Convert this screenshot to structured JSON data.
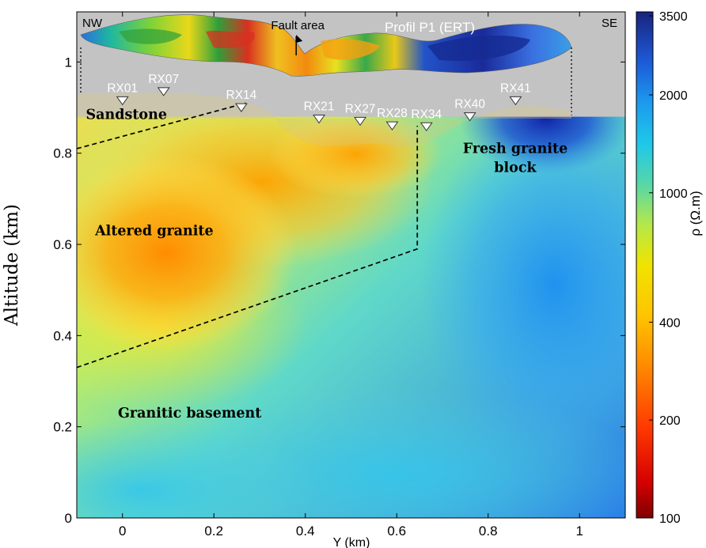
{
  "chart_data": {
    "type": "heatmap",
    "xlabel": "Y (km)",
    "ylabel": "Altitude (km)",
    "xlim": [
      -0.1,
      1.1
    ],
    "ylim": [
      0,
      1.11
    ],
    "x_ticks": [
      "0",
      "0.2",
      "0.4",
      "0.6",
      "0.8",
      "1"
    ],
    "x_tick_values": [
      0,
      0.2,
      0.4,
      0.6,
      0.8,
      1.0
    ],
    "y_ticks": [
      "0",
      "0.2",
      "0.4",
      "0.6",
      "0.8",
      "1"
    ],
    "y_tick_values": [
      0,
      0.2,
      0.4,
      0.6,
      0.8,
      1.0
    ],
    "colorbar": {
      "label": "ρ (Ω.m)",
      "scale": "log",
      "range": [
        100,
        3600
      ],
      "ticks": [
        "100",
        "200",
        "400",
        "1000",
        "2000",
        "3500"
      ],
      "tick_values": [
        100,
        200,
        400,
        1000,
        2000,
        3500
      ]
    },
    "profile_label": "Profil P1 (ERT)",
    "fault_label": "Fault area",
    "fault_x": 0.38,
    "direction_labels": {
      "left": "NW",
      "right": "SE"
    },
    "profile_extent": {
      "x0": -0.09,
      "x1": 0.99,
      "base_altitude": 0.88
    },
    "stations": [
      {
        "name": "RX01",
        "x": 0.0,
        "altitude": 0.915
      },
      {
        "name": "RX07",
        "x": 0.09,
        "altitude": 0.935
      },
      {
        "name": "RX14",
        "x": 0.26,
        "altitude": 0.9
      },
      {
        "name": "RX21",
        "x": 0.43,
        "altitude": 0.875
      },
      {
        "name": "RX27",
        "x": 0.52,
        "altitude": 0.87
      },
      {
        "name": "RX28",
        "x": 0.59,
        "altitude": 0.86
      },
      {
        "name": "RX34",
        "x": 0.665,
        "altitude": 0.858
      },
      {
        "name": "RX40",
        "x": 0.76,
        "altitude": 0.88
      },
      {
        "name": "RX41",
        "x": 0.86,
        "altitude": 0.915
      }
    ],
    "zone_labels": [
      {
        "name": "Sandstone",
        "x": -0.08,
        "altitude": 0.875
      },
      {
        "name": "Fresh granite\nblock",
        "x": 0.79,
        "altitude": 0.8
      },
      {
        "name": "Altered granite",
        "x": -0.06,
        "altitude": 0.62
      },
      {
        "name": "Granitic basement",
        "x": -0.01,
        "altitude": 0.22
      }
    ],
    "boundary_lines": [
      {
        "name": "upper-boundary",
        "points": [
          [
            -0.1,
            0.81
          ],
          [
            0.27,
            0.91
          ]
        ]
      },
      {
        "name": "lower-boundary",
        "points": [
          [
            -0.1,
            0.33
          ],
          [
            0.645,
            0.59
          ],
          [
            0.645,
            0.86
          ]
        ]
      }
    ]
  }
}
